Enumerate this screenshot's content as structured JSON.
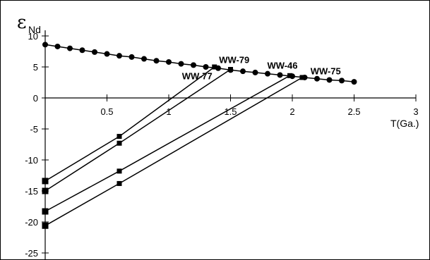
{
  "chart_data": {
    "type": "line",
    "title": "",
    "ylabel_main": "ε",
    "ylabel_sub": "Nd",
    "xlabel": "T(Ga.)",
    "xlim": [
      0,
      3
    ],
    "ylim": [
      -25,
      10
    ],
    "x_ticks": [
      0.5,
      1,
      1.5,
      2,
      2.5,
      3
    ],
    "x_tick_labels": [
      "0.5",
      "1",
      "1.5",
      "2",
      "2.5",
      "3"
    ],
    "y_ticks": [
      10,
      5,
      0,
      -5,
      -10,
      -15,
      -20,
      -25
    ],
    "y_tick_labels": [
      "10",
      "5",
      "0",
      "-5",
      "-10",
      "-15",
      "-20",
      "-25"
    ],
    "grid": false,
    "legend": "none",
    "series": [
      {
        "marker": "circle",
        "x": [
          0,
          0.1,
          0.2,
          0.3,
          0.4,
          0.5,
          0.6,
          0.7,
          0.8,
          0.9,
          1.0,
          1.1,
          1.2,
          1.3,
          1.4,
          1.5,
          1.6,
          1.7,
          1.8,
          1.9,
          2.0,
          2.1,
          2.2,
          2.3,
          2.4,
          2.5
        ],
        "y": [
          8.6,
          8.3,
          8.0,
          7.7,
          7.4,
          7.1,
          6.8,
          6.6,
          6.3,
          6.0,
          5.8,
          5.5,
          5.3,
          5.0,
          4.8,
          4.5,
          4.3,
          4.1,
          3.9,
          3.7,
          3.5,
          3.3,
          3.1,
          2.9,
          2.8,
          2.6
        ]
      },
      {
        "annotation": "WW-77",
        "marker": "square",
        "x": [
          0,
          0.6,
          1.37
        ],
        "y": [
          -13.4,
          -6.2,
          5.0
        ]
      },
      {
        "annotation": "WW-79",
        "marker": "square",
        "x": [
          0,
          0.6,
          1.5
        ],
        "y": [
          -15.0,
          -7.3,
          4.6
        ]
      },
      {
        "annotation": "WW-46",
        "marker": "square",
        "x": [
          0,
          0.6,
          1.98
        ],
        "y": [
          -18.3,
          -11.8,
          3.6
        ]
      },
      {
        "annotation": "WW-75",
        "marker": "square",
        "x": [
          0,
          0.6,
          2.08
        ],
        "y": [
          -20.6,
          -13.8,
          3.3
        ]
      }
    ],
    "annotations": [
      {
        "text": "WW-77",
        "x": 1.23,
        "y": 3.0
      },
      {
        "text": "WW-79",
        "x": 1.53,
        "y": 5.6
      },
      {
        "text": "WW-46",
        "x": 1.92,
        "y": 4.7
      },
      {
        "text": "WW-75",
        "x": 2.27,
        "y": 3.8
      }
    ]
  }
}
